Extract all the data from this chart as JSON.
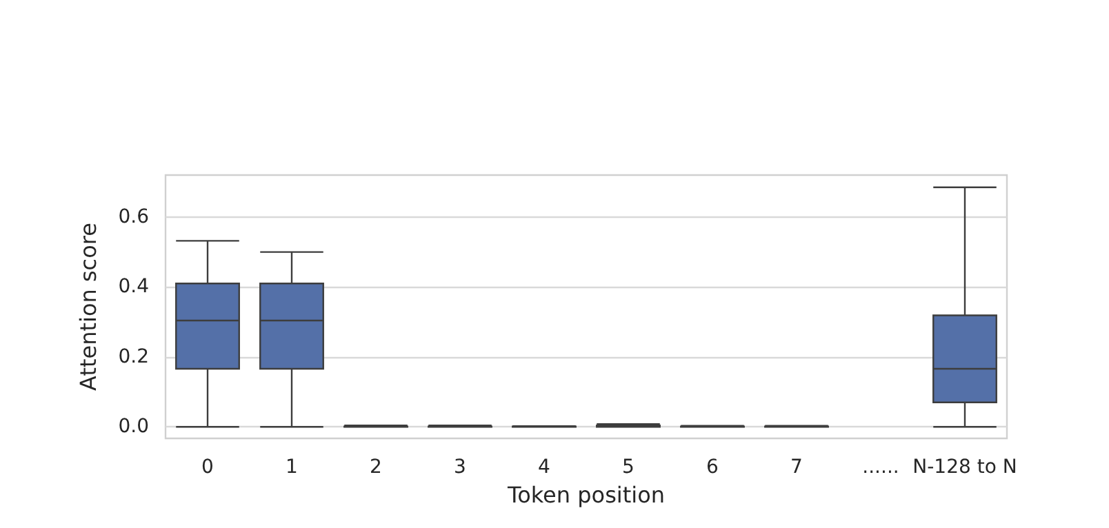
{
  "chart_data": {
    "type": "box",
    "xlabel": "Token position",
    "ylabel": "Attention score",
    "categories": [
      "0",
      "1",
      "2",
      "3",
      "4",
      "5",
      "6",
      "7",
      "......",
      "N-128 to N"
    ],
    "color": "#5470a8",
    "ylim": [
      -0.033,
      0.72
    ],
    "yticks": [
      {
        "value": 0,
        "label": "0.0"
      },
      {
        "value": 0.2,
        "label": "0.2"
      },
      {
        "value": 0.4,
        "label": "0.4"
      },
      {
        "value": 0.6,
        "label": "0.6"
      }
    ],
    "grid": "y",
    "boxes": [
      {
        "low": 0,
        "q1": 0.166,
        "median": 0.304,
        "q3": 0.41,
        "high": 0.532
      },
      {
        "low": 0,
        "q1": 0.166,
        "median": 0.304,
        "q3": 0.41,
        "high": 0.5
      },
      {
        "low": 0,
        "q1": 0,
        "median": 0,
        "q3": 0.001,
        "high": 0.004
      },
      {
        "low": 0,
        "q1": 0,
        "median": 0,
        "q3": 0.001,
        "high": 0.004
      },
      {
        "low": 0,
        "q1": 0,
        "median": 0,
        "q3": 0.001,
        "high": 0.002
      },
      {
        "low": 0,
        "q1": 0,
        "median": 0.002,
        "q3": 0.004,
        "high": 0.008
      },
      {
        "low": 0,
        "q1": 0,
        "median": 0,
        "q3": 0.001,
        "high": 0.003
      },
      {
        "low": 0,
        "q1": 0,
        "median": 0,
        "q3": 0.001,
        "high": 0.003
      },
      null,
      {
        "low": 0,
        "q1": 0.07,
        "median": 0.166,
        "q3": 0.319,
        "high": 0.685
      }
    ]
  }
}
